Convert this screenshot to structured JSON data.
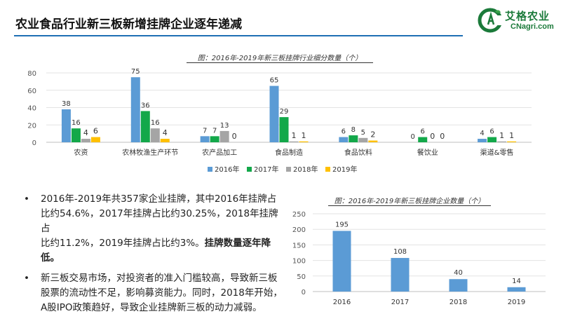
{
  "header": {
    "title": "农业食品行业新三板新增挂牌企业逐年递减"
  },
  "logo": {
    "cn_text": "艾格农业",
    "en_text": "CNagri.com",
    "color": "#1b7a3a"
  },
  "chart_data": [
    {
      "type": "bar",
      "title": "图：2016年-2019年新三板挂牌行业细分数量（个）",
      "categories": [
        "农资",
        "农林牧渔生产环节",
        "农产品加工",
        "食品制造",
        "食品饮料",
        "餐饮业",
        "渠道&零售"
      ],
      "series": [
        {
          "name": "2016年",
          "color": "#5b9bd5",
          "values": [
            38,
            75,
            7,
            65,
            6,
            0,
            4
          ]
        },
        {
          "name": "2017年",
          "color": "#13a84a",
          "values": [
            16,
            36,
            7,
            29,
            8,
            6,
            6
          ]
        },
        {
          "name": "2018年",
          "color": "#a5a5a5",
          "values": [
            4,
            16,
            13,
            1,
            5,
            0,
            1
          ]
        },
        {
          "name": "2019年",
          "color": "#ffc000",
          "values": [
            6,
            4,
            0,
            1,
            2,
            0,
            1
          ]
        }
      ],
      "ylim": [
        0,
        80
      ],
      "yticks": [
        0,
        20,
        40,
        60,
        80
      ],
      "grid": true,
      "legend": "bottom"
    },
    {
      "type": "bar",
      "title": "图：2016年-2019年新三板挂牌企业数量（个）",
      "categories": [
        "2016",
        "2017",
        "2018",
        "2019"
      ],
      "series": [
        {
          "color": "#5b9bd5",
          "values": [
            195,
            108,
            40,
            14
          ]
        }
      ],
      "ylim": [
        0,
        250
      ],
      "yticks": [
        0,
        50,
        100,
        150,
        200,
        250
      ],
      "grid": true
    }
  ],
  "bullets": [
    {
      "marker": "•",
      "lines": [
        "2016年-2019年共357家企业挂牌，其中2016年挂牌占",
        "比约54.6%，2017年挂牌占比约30.25%，2018年挂牌占"
      ],
      "last_plain": "比约11.2%，2019年挂牌占比约3%。",
      "last_bold": "挂牌数量逐年降低。"
    },
    {
      "marker": "•",
      "lines": [
        "新三板交易市场，对投资者的准入门槛较高，导致新三板",
        "股票的流动性不足，影响募资能力。同时，2018年开始，",
        "A股IPO政策趋好，导致企业挂牌新三板的动力减弱。"
      ]
    }
  ]
}
